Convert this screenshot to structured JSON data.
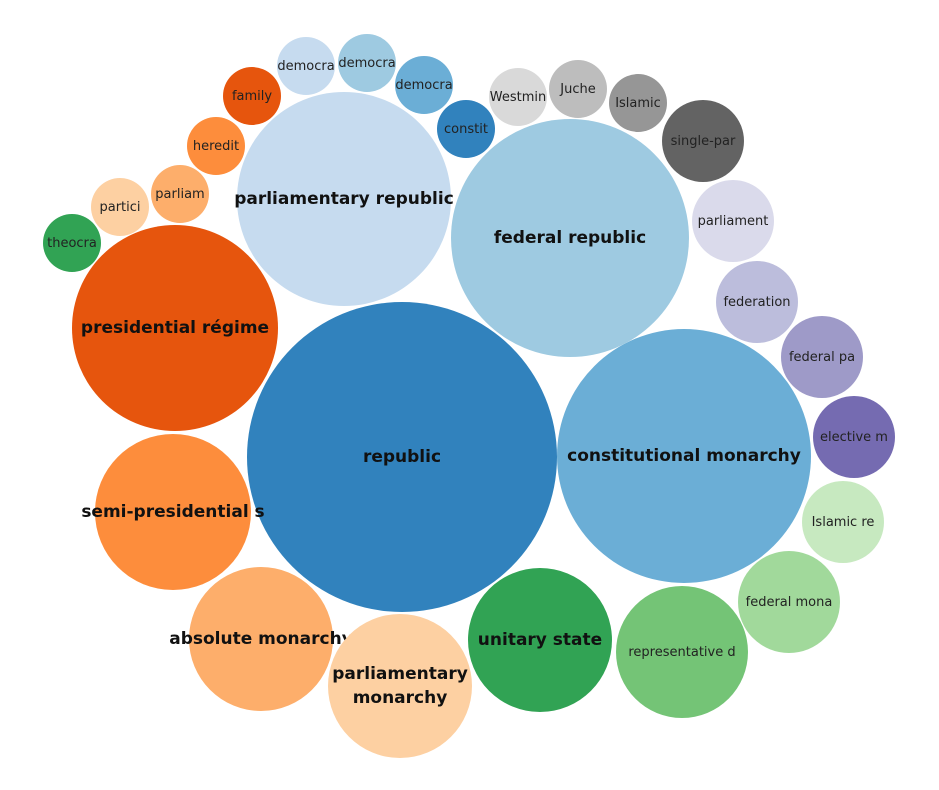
{
  "chart_data": {
    "type": "bubble",
    "title": "",
    "bubbles": [
      {
        "label": "republic",
        "value": 95,
        "color": "#3182bd"
      },
      {
        "label": "constitutional monarchy",
        "value": 64,
        "color": "#6baed6"
      },
      {
        "label": "federal republic",
        "value": 57,
        "color": "#9ecae1"
      },
      {
        "label": "parliamentary republic",
        "value": 36,
        "color": "#c6dbef"
      },
      {
        "label": "presidential régime",
        "value": 42,
        "color": "#e6550d"
      },
      {
        "label": "semi-presidential s",
        "value": 24.5,
        "color": "#fd8d3c"
      },
      {
        "label": "absolute monarchy",
        "value": 21,
        "color": "#fdae6b"
      },
      {
        "label": "parliamentary monarchy",
        "value": 21,
        "color": "#fdd0a2",
        "lines": [
          "parliamentary",
          "monarchy"
        ]
      },
      {
        "label": "unitary state",
        "value": 21,
        "color": "#31a354"
      },
      {
        "label": "representative d",
        "value": 17.5,
        "color": "#74c476"
      },
      {
        "label": "federal mona",
        "value": 10.5,
        "color": "#a1d99b"
      },
      {
        "label": "Islamic re",
        "value": 6.8,
        "color": "#c7e9c0"
      },
      {
        "label": "elective m",
        "value": 6.8,
        "color": "#756bb1"
      },
      {
        "label": "federal pa",
        "value": 6.8,
        "color": "#9e9ac8"
      },
      {
        "label": "federation",
        "value": 6.8,
        "color": "#bcbddc"
      },
      {
        "label": "parliament",
        "value": 6.8,
        "color": "#dadaeb"
      },
      {
        "label": "single-par",
        "value": 6.8,
        "color": "#636363"
      },
      {
        "label": "Islamic",
        "value": 3.3,
        "color": "#969696"
      },
      {
        "label": "Juche",
        "value": 3.3,
        "color": "#bdbdbd"
      },
      {
        "label": "Westmin",
        "value": 3.3,
        "color": "#d9d9d9"
      },
      {
        "label": "constit",
        "value": 3.3,
        "color": "#3182bd"
      },
      {
        "label": "democra",
        "value": 3.3,
        "color": "#6baed6",
        "key": "democra-3"
      },
      {
        "label": "democra",
        "value": 3.3,
        "color": "#9ecae1",
        "key": "democra-2"
      },
      {
        "label": "democra",
        "value": 3.3,
        "color": "#c6dbef",
        "key": "democra-1"
      },
      {
        "label": "family",
        "value": 3.3,
        "color": "#e6550d"
      },
      {
        "label": "heredit",
        "value": 3.3,
        "color": "#fd8d3c"
      },
      {
        "label": "parliam",
        "value": 3.3,
        "color": "#fdae6b"
      },
      {
        "label": "partici",
        "value": 3.3,
        "color": "#fdd0a2"
      },
      {
        "label": "theocra",
        "value": 3.3,
        "color": "#31a354"
      }
    ]
  }
}
